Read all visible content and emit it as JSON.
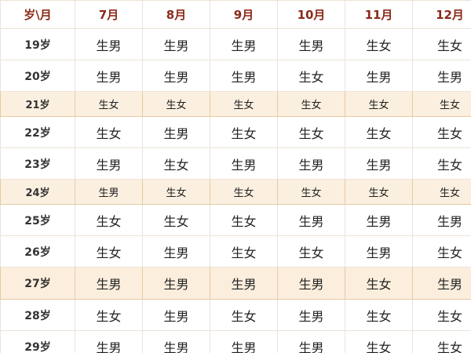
{
  "table": {
    "header": [
      "岁\\月",
      "7月",
      "8月",
      "9月",
      "10月",
      "11月",
      "12月"
    ],
    "rows": [
      [
        "19岁",
        "生男",
        "生男",
        "生男",
        "生男",
        "生女",
        "生女"
      ],
      [
        "20岁",
        "生男",
        "生男",
        "生男",
        "生女",
        "生男",
        "生男"
      ],
      [
        "21岁",
        "生女",
        "生女",
        "生女",
        "生女",
        "生女",
        "生女"
      ],
      [
        "22岁",
        "生女",
        "生男",
        "生女",
        "生女",
        "生女",
        "生女"
      ],
      [
        "23岁",
        "生男",
        "生女",
        "生男",
        "生男",
        "生男",
        "生女"
      ],
      [
        "24岁",
        "生男",
        "生女",
        "生女",
        "生女",
        "生女",
        "生女"
      ],
      [
        "25岁",
        "生女",
        "生女",
        "生女",
        "生男",
        "生男",
        "生男"
      ],
      [
        "26岁",
        "生女",
        "生男",
        "生女",
        "生女",
        "生男",
        "生女"
      ],
      [
        "27岁",
        "生男",
        "生男",
        "生男",
        "生男",
        "生女",
        "生男"
      ],
      [
        "28岁",
        "生女",
        "生男",
        "生女",
        "生男",
        "生女",
        "生女"
      ],
      [
        "29岁",
        "生男",
        "生男",
        "生男",
        "生男",
        "生女",
        "生女"
      ]
    ]
  }
}
